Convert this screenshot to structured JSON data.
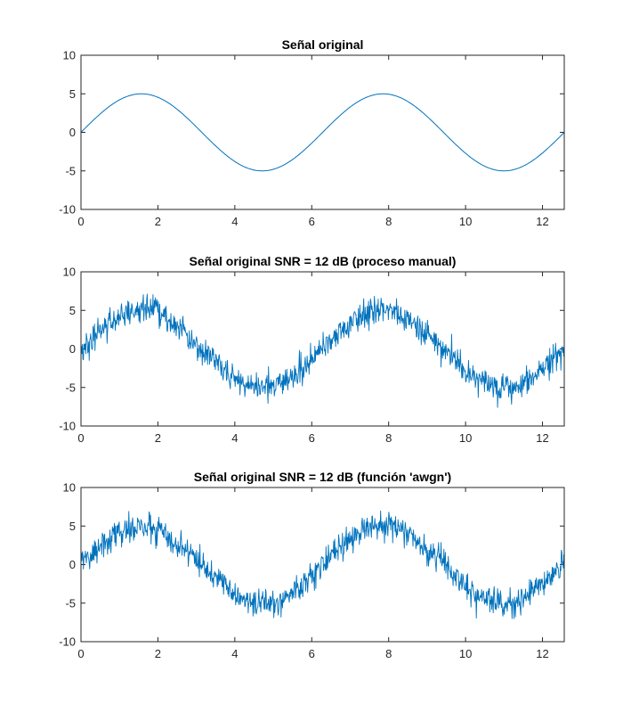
{
  "chart_data": [
    {
      "type": "line",
      "title": "Señal original",
      "xlabel": "",
      "ylabel": "",
      "xlim": [
        0,
        12.566
      ],
      "ylim": [
        -10,
        10
      ],
      "xticks": [
        0,
        2,
        4,
        6,
        8,
        10,
        12
      ],
      "yticks": [
        10,
        5,
        0,
        -5,
        -10
      ],
      "xtick_labels": [
        "0",
        "2",
        "4",
        "6",
        "8",
        "10",
        "12"
      ],
      "ytick_labels": [
        "10",
        "5",
        "0",
        "-5",
        "-10"
      ],
      "grid": false,
      "legend": "none",
      "series": [
        {
          "function": "5*sin(x)",
          "x_range": [
            0,
            12.566
          ],
          "color": "#0072BD",
          "noise_amplitude": 0,
          "seed": 0
        }
      ]
    },
    {
      "type": "line",
      "title": "Señal original SNR = 12 dB (proceso manual)",
      "xlabel": "",
      "ylabel": "",
      "xlim": [
        0,
        12.566
      ],
      "ylim": [
        -10,
        10
      ],
      "xticks": [
        0,
        2,
        4,
        6,
        8,
        10,
        12
      ],
      "yticks": [
        10,
        5,
        0,
        -5,
        -10
      ],
      "xtick_labels": [
        "0",
        "2",
        "4",
        "6",
        "8",
        "10",
        "12"
      ],
      "ytick_labels": [
        "10",
        "5",
        "0",
        "-5",
        "-10"
      ],
      "grid": false,
      "legend": "none",
      "series": [
        {
          "function": "5*sin(x) + noise",
          "x_range": [
            0,
            12.566
          ],
          "color": "#0072BD",
          "noise_amplitude": 0.9,
          "seed": 7
        }
      ]
    },
    {
      "type": "line",
      "title": "Señal original SNR = 12 dB (función 'awgn')",
      "xlabel": "",
      "ylabel": "",
      "xlim": [
        0,
        12.566
      ],
      "ylim": [
        -10,
        10
      ],
      "xticks": [
        0,
        2,
        4,
        6,
        8,
        10,
        12
      ],
      "yticks": [
        10,
        5,
        0,
        -5,
        -10
      ],
      "xtick_labels": [
        "0",
        "2",
        "4",
        "6",
        "8",
        "10",
        "12"
      ],
      "ytick_labels": [
        "10",
        "5",
        "0",
        "-5",
        "-10"
      ],
      "grid": false,
      "legend": "none",
      "series": [
        {
          "function": "5*sin(x) + noise",
          "x_range": [
            0,
            12.566
          ],
          "color": "#0072BD",
          "noise_amplitude": 0.9,
          "seed": 23
        }
      ]
    }
  ]
}
